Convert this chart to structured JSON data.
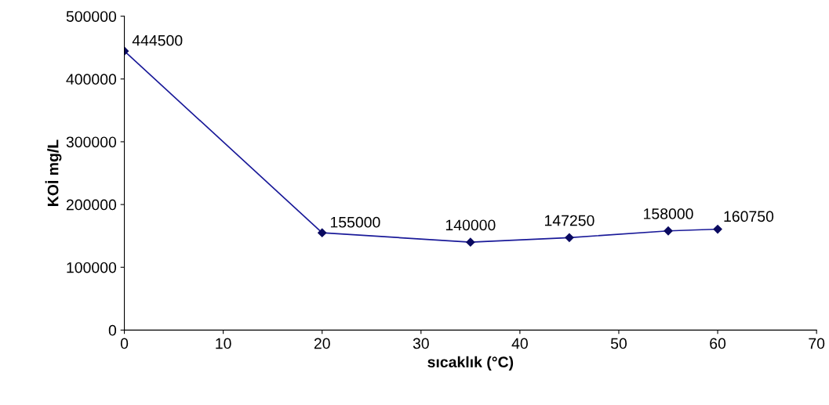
{
  "chart_data": {
    "type": "line",
    "xlabel": "sıcaklık (°C)",
    "ylabel": "KOİ mg/L",
    "x": [
      0,
      20,
      35,
      45,
      55,
      60
    ],
    "series": [
      {
        "color": "#1a1a99",
        "values": [
          444500,
          155000,
          140000,
          147250,
          158000,
          160750
        ]
      }
    ],
    "xlim": [
      0,
      70
    ],
    "xticks": [
      0,
      10,
      20,
      30,
      40,
      50,
      60,
      70
    ],
    "ylim": [
      0,
      500000
    ],
    "yticks": [
      0,
      100000,
      200000,
      300000,
      400000,
      500000
    ],
    "marker": "diamond",
    "line_style": "solid",
    "grid": false,
    "data_labels": true
  }
}
